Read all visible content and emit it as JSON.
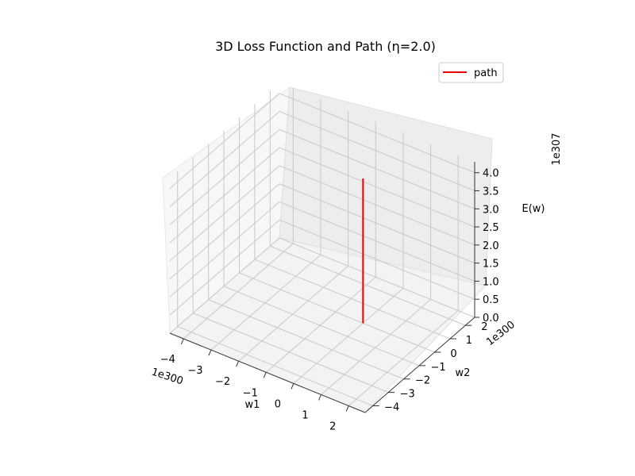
{
  "chart_data": {
    "type": "line",
    "projection": "3d",
    "title": "3D Loss Function and Path (η=2.0)",
    "xlabel": "w1",
    "ylabel": "w2",
    "zlabel": "E(w)",
    "x_offset_label": "1e300",
    "y_offset_label": "1e300",
    "z_offset_label": "1e307",
    "x_ticks": [
      "−4",
      "−3",
      "−2",
      "−1",
      "0",
      "1",
      "2"
    ],
    "y_ticks": [
      "−4",
      "−3",
      "−2",
      "−1",
      "0",
      "1",
      "2"
    ],
    "z_ticks": [
      "0.0",
      "0.5",
      "1.0",
      "1.5",
      "2.0",
      "2.5",
      "3.0",
      "3.5",
      "4.0"
    ],
    "grid": true,
    "legend": {
      "placement": "top-right",
      "entries": [
        "path"
      ]
    },
    "series": [
      {
        "name": "path",
        "color": "#e50000",
        "points": [
          {
            "x": 0,
            "y": 0,
            "z": 4.0
          },
          {
            "x": 0,
            "y": 0,
            "z": 0.0
          }
        ]
      }
    ]
  }
}
